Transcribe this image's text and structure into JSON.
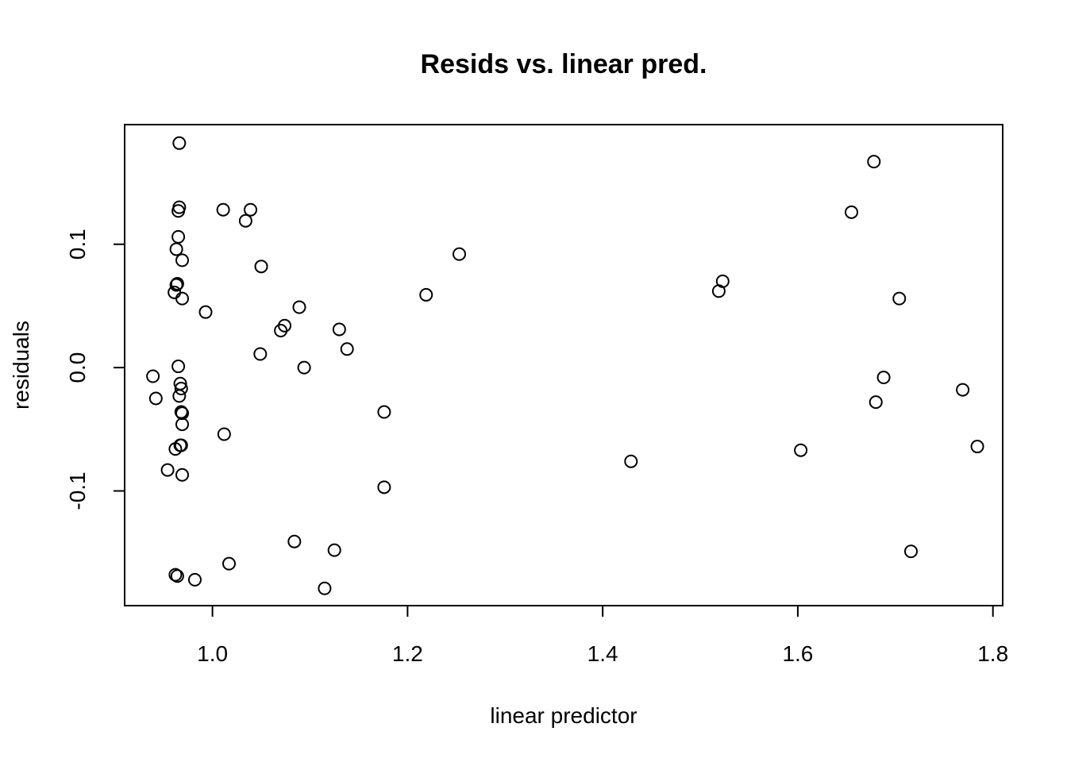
{
  "chart_data": {
    "type": "scatter",
    "title": "Resids vs. linear pred.",
    "xlabel": "linear predictor",
    "ylabel": "residuals",
    "xlim": [
      0.91,
      1.81
    ],
    "ylim": [
      -0.193,
      0.197
    ],
    "xticks": [
      1.0,
      1.2,
      1.4,
      1.6,
      1.8
    ],
    "xtick_labels": [
      "1.0",
      "1.2",
      "1.4",
      "1.6",
      "1.8"
    ],
    "yticks": [
      -0.1,
      0.0,
      0.1
    ],
    "ytick_labels": [
      "-0.1",
      "0.0",
      "0.1"
    ],
    "grid": false,
    "legend": "none",
    "marker": "open-circle",
    "points": [
      {
        "x": 0.966,
        "y": 0.182
      },
      {
        "x": 0.966,
        "y": 0.13
      },
      {
        "x": 0.965,
        "y": 0.127
      },
      {
        "x": 0.965,
        "y": 0.106
      },
      {
        "x": 0.963,
        "y": 0.096
      },
      {
        "x": 0.969,
        "y": 0.087
      },
      {
        "x": 0.964,
        "y": 0.068
      },
      {
        "x": 0.963,
        "y": 0.067
      },
      {
        "x": 0.961,
        "y": 0.061
      },
      {
        "x": 0.969,
        "y": 0.056
      },
      {
        "x": 0.993,
        "y": 0.045
      },
      {
        "x": 0.965,
        "y": 0.001
      },
      {
        "x": 0.967,
        "y": -0.013
      },
      {
        "x": 0.968,
        "y": -0.017
      },
      {
        "x": 0.966,
        "y": -0.023
      },
      {
        "x": 0.968,
        "y": -0.036
      },
      {
        "x": 0.969,
        "y": -0.037
      },
      {
        "x": 0.969,
        "y": -0.046
      },
      {
        "x": 0.968,
        "y": -0.063
      },
      {
        "x": 0.967,
        "y": -0.063
      },
      {
        "x": 0.962,
        "y": -0.066
      },
      {
        "x": 0.954,
        "y": -0.083
      },
      {
        "x": 0.969,
        "y": -0.087
      },
      {
        "x": 0.939,
        "y": -0.007
      },
      {
        "x": 0.942,
        "y": -0.025
      },
      {
        "x": 0.962,
        "y": -0.168
      },
      {
        "x": 0.964,
        "y": -0.169
      },
      {
        "x": 0.982,
        "y": -0.172
      },
      {
        "x": 1.011,
        "y": 0.128
      },
      {
        "x": 1.039,
        "y": 0.128
      },
      {
        "x": 1.034,
        "y": 0.119
      },
      {
        "x": 1.05,
        "y": 0.082
      },
      {
        "x": 1.089,
        "y": 0.049
      },
      {
        "x": 1.074,
        "y": 0.034
      },
      {
        "x": 1.07,
        "y": 0.03
      },
      {
        "x": 1.13,
        "y": 0.031
      },
      {
        "x": 1.049,
        "y": 0.011
      },
      {
        "x": 1.138,
        "y": 0.015
      },
      {
        "x": 1.094,
        "y": 0.0
      },
      {
        "x": 1.012,
        "y": -0.054
      },
      {
        "x": 1.176,
        "y": -0.036
      },
      {
        "x": 1.176,
        "y": -0.097
      },
      {
        "x": 1.084,
        "y": -0.141
      },
      {
        "x": 1.125,
        "y": -0.148
      },
      {
        "x": 1.017,
        "y": -0.159
      },
      {
        "x": 1.115,
        "y": -0.179
      },
      {
        "x": 1.219,
        "y": 0.059
      },
      {
        "x": 1.253,
        "y": 0.092
      },
      {
        "x": 1.429,
        "y": -0.076
      },
      {
        "x": 1.519,
        "y": 0.062
      },
      {
        "x": 1.523,
        "y": 0.07
      },
      {
        "x": 1.603,
        "y": -0.067
      },
      {
        "x": 1.655,
        "y": 0.126
      },
      {
        "x": 1.678,
        "y": 0.167
      },
      {
        "x": 1.68,
        "y": -0.028
      },
      {
        "x": 1.688,
        "y": -0.008
      },
      {
        "x": 1.704,
        "y": 0.056
      },
      {
        "x": 1.716,
        "y": -0.149
      },
      {
        "x": 1.769,
        "y": -0.018
      },
      {
        "x": 1.784,
        "y": -0.064
      }
    ]
  }
}
